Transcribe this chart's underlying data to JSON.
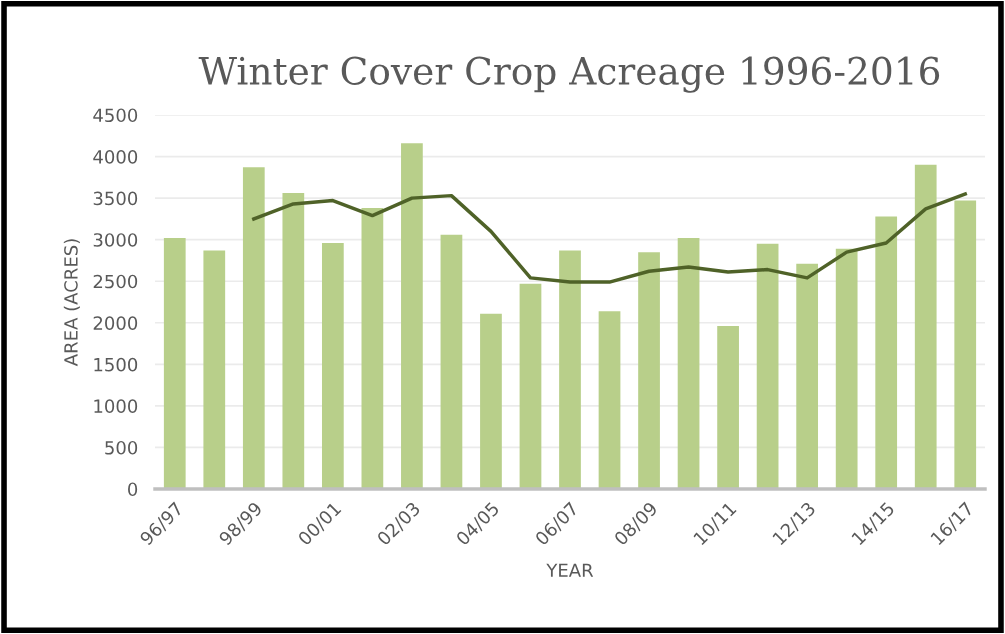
{
  "chart_data": {
    "type": "bar",
    "title": "Winter Cover Crop Acreage 1996-2016",
    "xlabel": "YEAR",
    "ylabel": "AREA (ACRES)",
    "categories": [
      "96/97",
      null,
      "98/99",
      null,
      "00/01",
      null,
      "02/03",
      null,
      "04/05",
      null,
      "06/07",
      null,
      "08/09",
      null,
      "10/11",
      null,
      "12/13",
      null,
      "14/15",
      null,
      "16/17"
    ],
    "series": [
      {
        "color": "#b8cf8a",
        "values": [
          3020,
          2870,
          3870,
          3560,
          2960,
          3380,
          4160,
          3060,
          2110,
          2470,
          2870,
          2140,
          2850,
          3020,
          1960,
          2950,
          2710,
          2890,
          3280,
          3900,
          3470
        ]
      },
      {
        "type": "line",
        "color": "#4f6228",
        "values": [
          null,
          null,
          3250,
          3430,
          3470,
          3290,
          3500,
          3530,
          3100,
          2540,
          2490,
          2490,
          2620,
          2670,
          2610,
          2640,
          2540,
          2850,
          2960,
          3370,
          3550
        ]
      }
    ],
    "ylim": [
      0,
      4500
    ],
    "yticks": [
      0,
      500,
      1000,
      1500,
      2000,
      2500,
      3000,
      3500,
      4000,
      4500
    ],
    "grid": "y",
    "legend": false
  }
}
